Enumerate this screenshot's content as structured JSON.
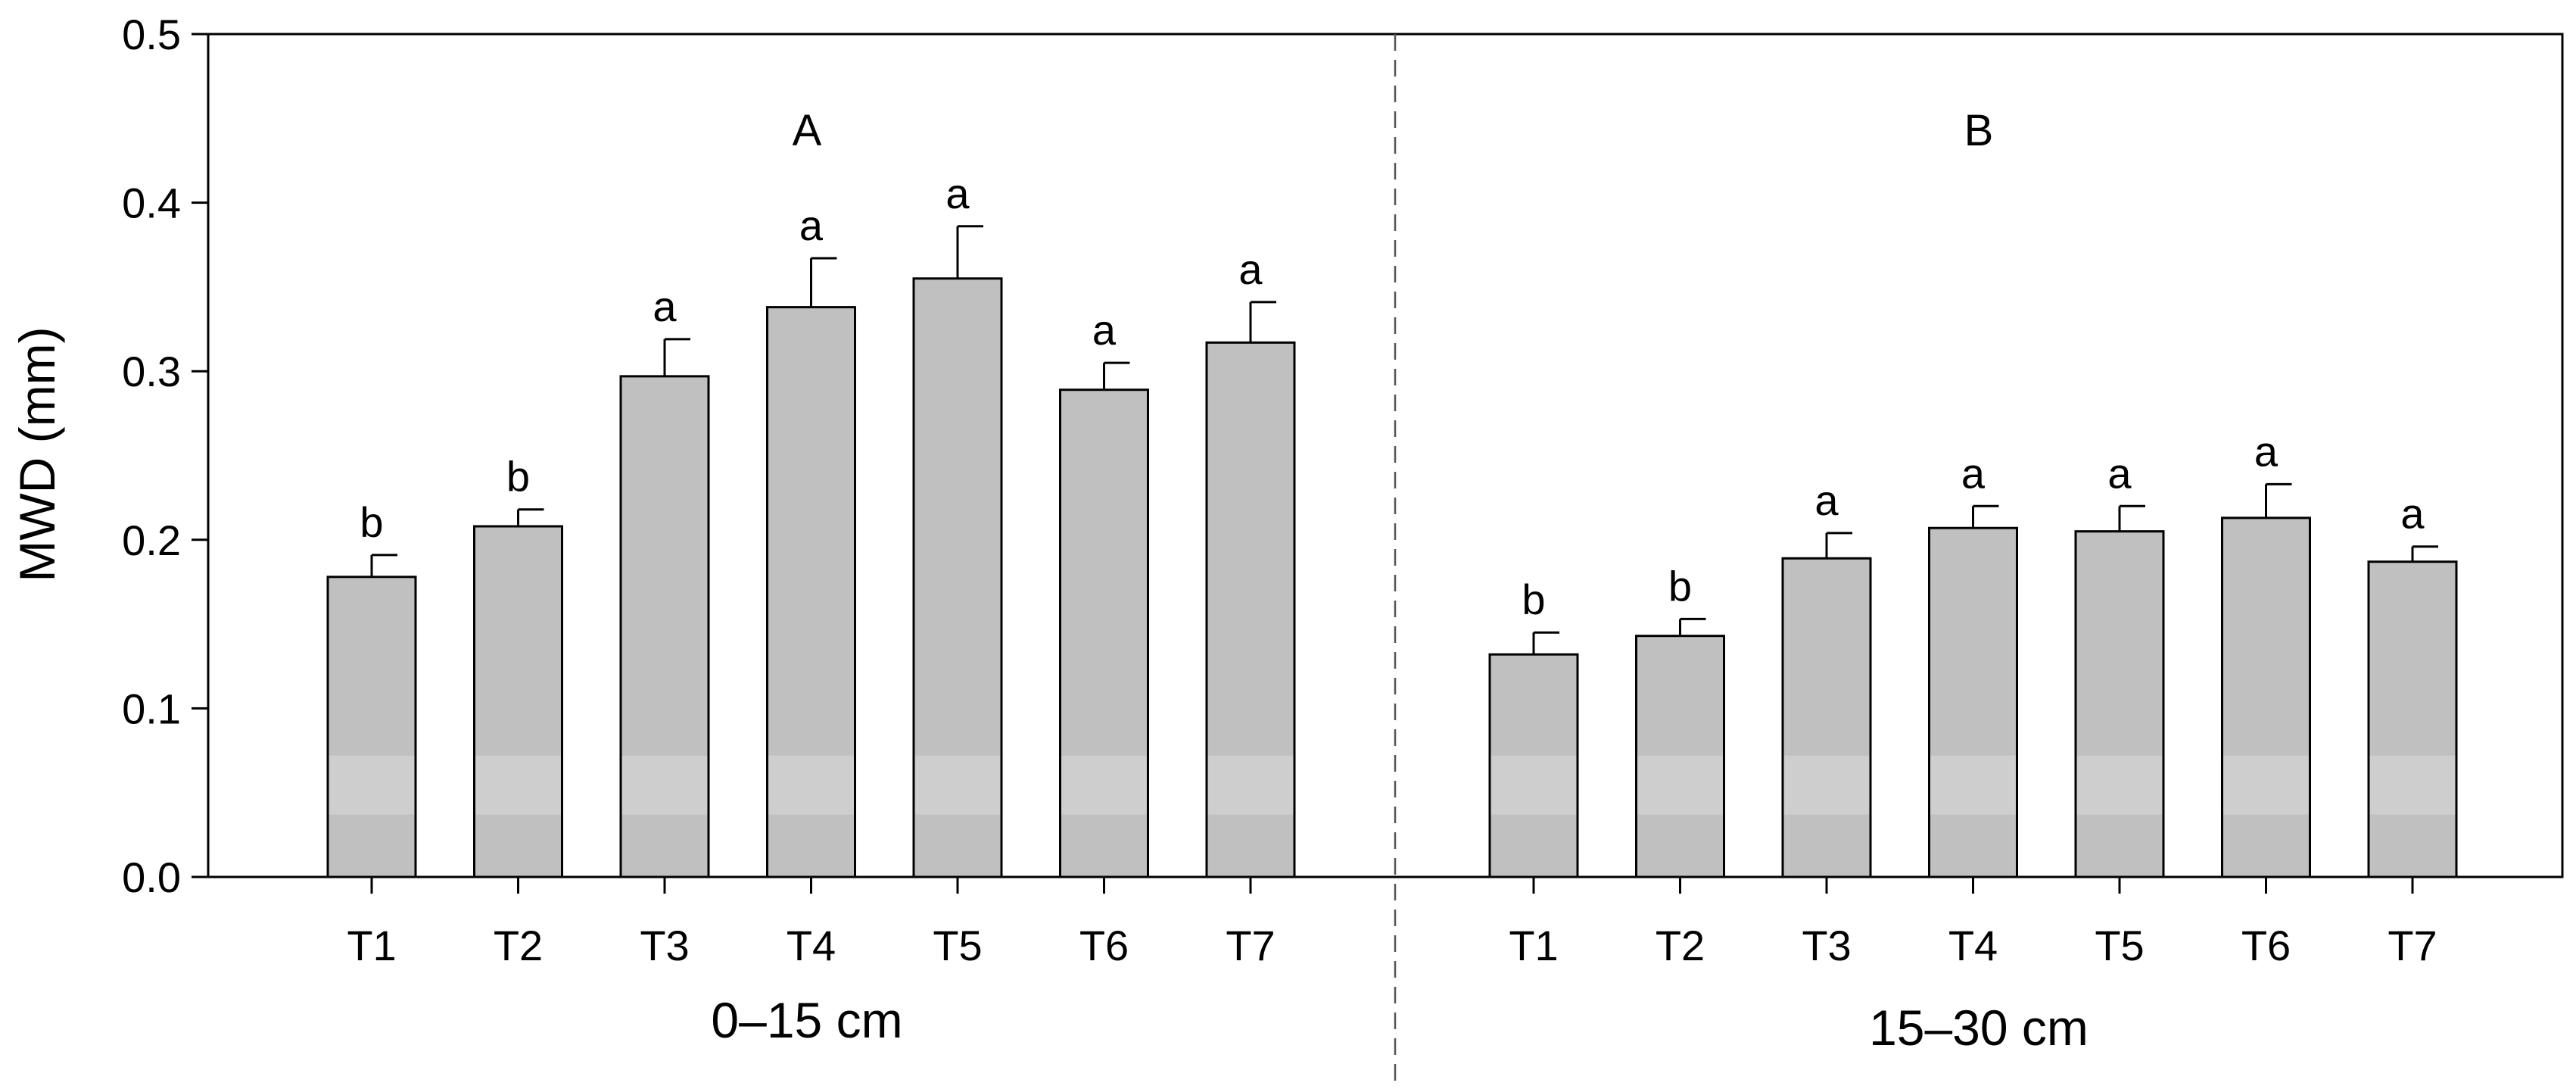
{
  "chart_data": {
    "type": "bar",
    "ylabel": "MWD (mm)",
    "ylim": [
      0,
      0.5
    ],
    "yticks": [
      "0.0",
      "0.1",
      "0.2",
      "0.3",
      "0.4",
      "0.5"
    ],
    "grid": false,
    "groups": [
      {
        "panel_label": "A",
        "depth_label": "0–15 cm",
        "categories": [
          "T1",
          "T2",
          "T3",
          "T4",
          "T5",
          "T6",
          "T7"
        ],
        "values": [
          0.178,
          0.208,
          0.297,
          0.338,
          0.355,
          0.289,
          0.317
        ],
        "errors": [
          0.013,
          0.01,
          0.022,
          0.029,
          0.031,
          0.016,
          0.024
        ],
        "significance": [
          "b",
          "b",
          "a",
          "a",
          "a",
          "a",
          "a"
        ]
      },
      {
        "panel_label": "B",
        "depth_label": "15–30 cm",
        "categories": [
          "T1",
          "T2",
          "T3",
          "T4",
          "T5",
          "T6",
          "T7"
        ],
        "values": [
          0.132,
          0.143,
          0.189,
          0.207,
          0.205,
          0.213,
          0.187
        ],
        "errors": [
          0.013,
          0.01,
          0.015,
          0.013,
          0.015,
          0.02,
          0.009
        ],
        "significance": [
          "b",
          "b",
          "a",
          "a",
          "a",
          "a",
          "a"
        ]
      }
    ],
    "colors": {
      "bar_fill": "#c0c0c0",
      "bar_band": "#cecece",
      "bar_stroke": "#000000"
    }
  }
}
